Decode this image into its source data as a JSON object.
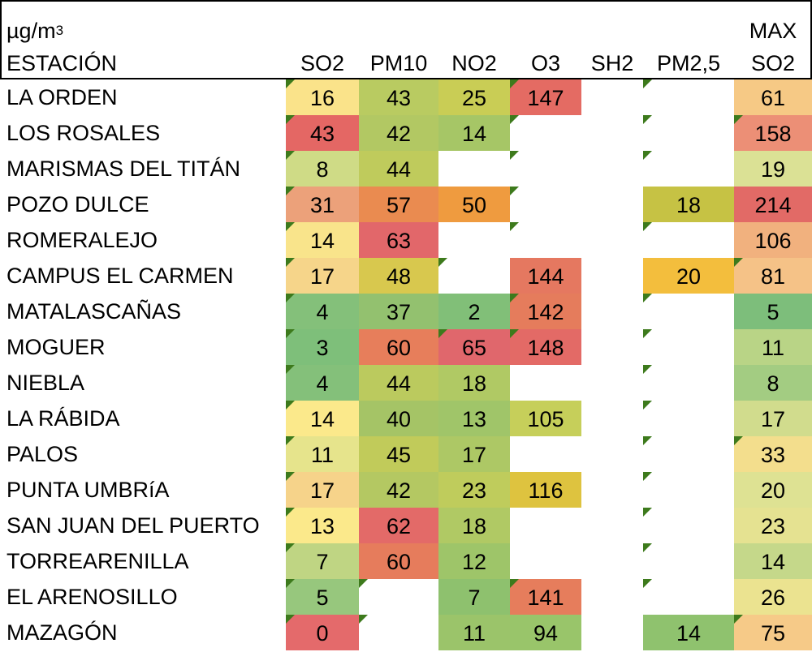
{
  "header": {
    "unit_base": "µg/m",
    "unit_exp": "3",
    "station_label": "ESTACIÓN",
    "max_label": "MAX",
    "columns": [
      "SO2",
      "PM10",
      "NO2",
      "O3",
      "SH2",
      "PM2,5",
      "SO2"
    ]
  },
  "rows": [
    {
      "name": "LA ORDEN",
      "values": [
        "16",
        "43",
        "25",
        "147",
        "",
        "",
        "61"
      ],
      "colors": [
        "#fae38a",
        "#b9cb61",
        "#c9cd55",
        "#e46b63",
        "",
        "",
        "#f6c985"
      ]
    },
    {
      "name": "LOS ROSALES",
      "values": [
        "43",
        "42",
        "14",
        "",
        "",
        "",
        "158"
      ],
      "colors": [
        "#e46764",
        "#b2c863",
        "#a6c666",
        "",
        "",
        "",
        "#ec8f76"
      ]
    },
    {
      "name": "MARISMAS DEL TITÁN",
      "values": [
        "8",
        "44",
        "",
        "",
        "",
        "",
        "19"
      ],
      "colors": [
        "#cfdb86",
        "#bfcb5c",
        "",
        "",
        "",
        "",
        "#dbe195"
      ]
    },
    {
      "name": "POZO DULCE",
      "values": [
        "31",
        "57",
        "50",
        "",
        "",
        "18",
        "214"
      ],
      "colors": [
        "#eca17a",
        "#ea8b50",
        "#ef9b3f",
        "",
        "",
        "#c6c244",
        "#e26a66"
      ]
    },
    {
      "name": "ROMERALEJO",
      "values": [
        "14",
        "63",
        "",
        "",
        "",
        "",
        "106"
      ],
      "colors": [
        "#f9e48b",
        "#e2676a",
        "",
        "",
        "",
        "",
        "#f1b17e"
      ]
    },
    {
      "name": "CAMPUS EL CARMEN",
      "values": [
        "17",
        "48",
        "",
        "144",
        "",
        "20",
        "81"
      ],
      "colors": [
        "#f6d58a",
        "#d8c84e",
        "",
        "#e57860",
        "",
        "#f3be3d",
        "#f5c287"
      ]
    },
    {
      "name": "MATALASCAÑAS",
      "values": [
        "4",
        "37",
        "2",
        "142",
        "",
        "",
        "5"
      ],
      "colors": [
        "#84c07a",
        "#93c16f",
        "#81bf78",
        "#e57c5c",
        "",
        "",
        "#7dbe7b"
      ]
    },
    {
      "name": "MOGUER",
      "values": [
        "3",
        "60",
        "65",
        "148",
        "",
        "",
        "11"
      ],
      "colors": [
        "#7ebf7a",
        "#e77e5b",
        "#e0676c",
        "#e36a66",
        "",
        "",
        "#b9d486"
      ]
    },
    {
      "name": "NIEBLA",
      "values": [
        "4",
        "44",
        "18",
        "",
        "",
        "",
        "8"
      ],
      "colors": [
        "#84c07a",
        "#bbca5e",
        "#b0c964",
        "",
        "",
        "",
        "#a3cc82"
      ]
    },
    {
      "name": "LA RÁBIDA",
      "values": [
        "14",
        "40",
        "13",
        "105",
        "",
        "",
        "17"
      ],
      "colors": [
        "#fbe98b",
        "#a5c466",
        "#a0c569",
        "#c6cf5a",
        "",
        "",
        "#d1dc8d"
      ]
    },
    {
      "name": "PALOS",
      "values": [
        "11",
        "45",
        "17",
        "",
        "",
        "",
        "33"
      ],
      "colors": [
        "#e6e48c",
        "#c1cb5a",
        "#adc865",
        "",
        "",
        "",
        "#f3de8d"
      ]
    },
    {
      "name": "PUNTA UMBRíA",
      "values": [
        "17",
        "42",
        "23",
        "116",
        "",
        "",
        "20"
      ],
      "colors": [
        "#f6d38a",
        "#b4c862",
        "#bfcc5c",
        "#dec33f",
        "",
        "",
        "#dee293"
      ]
    },
    {
      "name": "SAN JUAN DEL PUERTO",
      "values": [
        "13",
        "62",
        "18",
        "",
        "",
        "",
        "23"
      ],
      "colors": [
        "#fbe98b",
        "#e36a68",
        "#b0c964",
        "",
        "",
        "",
        "#e5e291"
      ]
    },
    {
      "name": "TORREARENILLA",
      "values": [
        "7",
        "60",
        "12",
        "",
        "",
        "",
        "14"
      ],
      "colors": [
        "#bfd583",
        "#e67c5c",
        "#9ec569",
        "",
        "",
        "",
        "#c5d88a"
      ]
    },
    {
      "name": "EL ARENOSILLO",
      "values": [
        "5",
        "",
        "7",
        "141",
        "",
        "",
        "26"
      ],
      "colors": [
        "#97c77d",
        "",
        "#8ec16e",
        "#e67d5c",
        "",
        "",
        "#ebe390"
      ]
    },
    {
      "name": "MAZAGÓN",
      "values": [
        "0",
        "",
        "11",
        "94",
        "",
        "14",
        "75"
      ],
      "colors": [
        "#e46a6b",
        "",
        "#9bc46a",
        "#99c56a",
        "",
        "#8fc26e",
        "#f6ca88"
      ]
    }
  ],
  "markers": [
    [
      true,
      false,
      false,
      true,
      false,
      true,
      false
    ],
    [
      true,
      false,
      false,
      true,
      false,
      true,
      true
    ],
    [
      true,
      false,
      false,
      true,
      false,
      true,
      false
    ],
    [
      true,
      false,
      false,
      true,
      false,
      false,
      false
    ],
    [
      true,
      false,
      false,
      true,
      false,
      true,
      false
    ],
    [
      true,
      false,
      true,
      false,
      false,
      false,
      true
    ],
    [
      true,
      false,
      false,
      true,
      false,
      true,
      false
    ],
    [
      true,
      false,
      true,
      true,
      false,
      true,
      false
    ],
    [
      true,
      false,
      false,
      false,
      false,
      true,
      false
    ],
    [
      true,
      false,
      false,
      false,
      false,
      true,
      false
    ],
    [
      true,
      false,
      false,
      false,
      false,
      true,
      true
    ],
    [
      true,
      false,
      false,
      false,
      false,
      true,
      false
    ],
    [
      true,
      false,
      false,
      false,
      false,
      true,
      false
    ],
    [
      true,
      false,
      false,
      false,
      false,
      true,
      false
    ],
    [
      true,
      true,
      false,
      true,
      false,
      true,
      false
    ],
    [
      true,
      true,
      false,
      false,
      false,
      false,
      true
    ]
  ]
}
